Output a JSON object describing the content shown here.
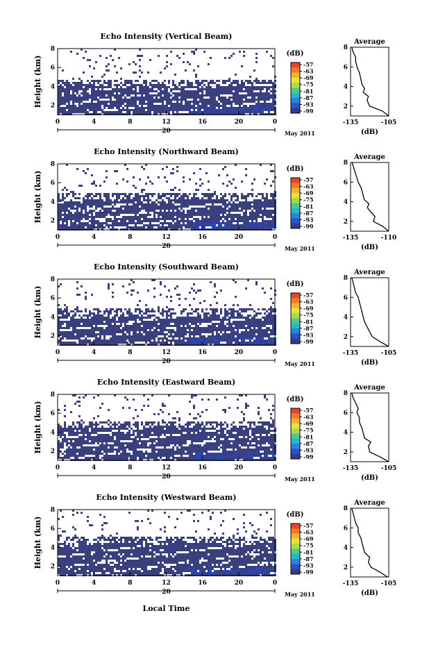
{
  "figure": {
    "month_label": "May 2011",
    "xaxis_label": "Local Time",
    "date_label": "20"
  },
  "colors": {
    "background": "#ffffff",
    "echo_fill": "#3a3f7e",
    "strong_echo": "#2446c8"
  },
  "colorbar": {
    "unit": "(dB)",
    "ticks": [
      "-57",
      "-63",
      "-69",
      "-75",
      "-81",
      "-87",
      "-93",
      "-99"
    ],
    "colors": [
      "#e8432c",
      "#f07a2a",
      "#f2b233",
      "#e8e23c",
      "#a6dc4a",
      "#52c98a",
      "#28b7cc",
      "#2a84d8",
      "#2d54c2",
      "#353a8e"
    ]
  },
  "chart_data": [
    {
      "type": "heatmap",
      "title": "Echo Intensity (Vertical Beam)",
      "ylabel": "Height (km)",
      "xlim": [
        0,
        24
      ],
      "ylim": [
        1,
        8
      ],
      "xticks": [
        "0",
        "4",
        "8",
        "12",
        "16",
        "20",
        "0"
      ],
      "yticks": [
        "2",
        "4",
        "6",
        "8"
      ],
      "echo_top_km": 4.1,
      "profile": {
        "title": "Average",
        "xlabel": "(dB)",
        "xlim": [
          -135,
          -105
        ],
        "xticks": [
          "-135",
          "-105"
        ],
        "ylim": [
          1,
          8
        ],
        "yticks": [
          "2",
          "4",
          "6",
          "8"
        ],
        "x": [
          -104,
          -110,
          -120,
          -122,
          -121,
          -125,
          -124,
          -126,
          -127,
          -128,
          -130,
          -131,
          -131,
          -133,
          -134
        ],
        "y": [
          1.0,
          1.5,
          2.0,
          2.6,
          3.0,
          3.4,
          3.8,
          4.2,
          4.8,
          5.4,
          6.0,
          6.6,
          7.0,
          7.5,
          8.0
        ]
      }
    },
    {
      "type": "heatmap",
      "title": "Echo Intensity (Northward Beam)",
      "ylabel": "Height (km)",
      "xlim": [
        0,
        24
      ],
      "ylim": [
        1,
        8
      ],
      "xticks": [
        "0",
        "4",
        "8",
        "12",
        "16",
        "20",
        "0"
      ],
      "yticks": [
        "2",
        "4",
        "6",
        "8"
      ],
      "echo_top_km": 4.3,
      "profile": {
        "title": "Average",
        "xlabel": "(dB)",
        "xlim": [
          -135,
          -110
        ],
        "xticks": [
          "-135",
          "-110"
        ],
        "ylim": [
          1,
          8
        ],
        "yticks": [
          "2",
          "4",
          "6",
          "8"
        ],
        "x": [
          -110,
          -114,
          -120,
          -119,
          -122,
          -124,
          -123,
          -126,
          -127,
          -128,
          -130,
          -131,
          -132,
          -133,
          -134
        ],
        "y": [
          1.0,
          1.5,
          2.0,
          2.5,
          3.0,
          3.4,
          3.8,
          4.2,
          4.8,
          5.4,
          6.0,
          6.5,
          7.0,
          7.5,
          8.0
        ]
      }
    },
    {
      "type": "heatmap",
      "title": "Echo Intensity (Southward Beam)",
      "ylabel": "Height (km)",
      "xlim": [
        0,
        24
      ],
      "ylim": [
        1,
        8
      ],
      "xticks": [
        "0",
        "4",
        "8",
        "12",
        "16",
        "20",
        "0"
      ],
      "yticks": [
        "2",
        "4",
        "6",
        "8"
      ],
      "echo_top_km": 4.2,
      "profile": {
        "title": "Average",
        "xlabel": "(dB)",
        "xlim": [
          -135,
          -105
        ],
        "xticks": [
          "-135",
          "-105"
        ],
        "ylim": [
          1,
          8
        ],
        "yticks": [
          "2",
          "4",
          "6",
          "8"
        ],
        "x": [
          -105,
          -112,
          -118,
          -120,
          -122,
          -124,
          -125,
          -126,
          -127,
          -128,
          -129,
          -131,
          -132,
          -133,
          -134
        ],
        "y": [
          1.0,
          1.5,
          2.0,
          2.5,
          3.0,
          3.5,
          4.0,
          4.5,
          5.0,
          5.5,
          6.0,
          6.5,
          7.0,
          7.5,
          8.0
        ]
      }
    },
    {
      "type": "heatmap",
      "title": "Echo Intensity (Eastward Beam)",
      "ylabel": "Height (km)",
      "xlim": [
        0,
        24
      ],
      "ylim": [
        1,
        8
      ],
      "xticks": [
        "0",
        "4",
        "8",
        "12",
        "16",
        "20",
        "0"
      ],
      "yticks": [
        "2",
        "4",
        "6",
        "8"
      ],
      "echo_top_km": 4.5,
      "profile": {
        "title": "Average",
        "xlabel": "(dB)",
        "xlim": [
          -135,
          -105
        ],
        "xticks": [
          "-135",
          "-105"
        ],
        "ylim": [
          1,
          8
        ],
        "yticks": [
          "2",
          "4",
          "6",
          "8"
        ],
        "x": [
          -105,
          -112,
          -120,
          -121,
          -119,
          -124,
          -125,
          -126,
          -128,
          -128,
          -130,
          -129,
          -131,
          -133,
          -134
        ],
        "y": [
          1.0,
          1.5,
          2.0,
          2.6,
          3.0,
          3.4,
          3.9,
          4.4,
          5.0,
          5.5,
          6.0,
          6.4,
          7.0,
          7.5,
          8.0
        ]
      }
    },
    {
      "type": "heatmap",
      "title": "Echo Intensity (Westward Beam)",
      "ylabel": "Height (km)",
      "xlim": [
        0,
        24
      ],
      "ylim": [
        1,
        8
      ],
      "xticks": [
        "0",
        "4",
        "8",
        "12",
        "16",
        "20",
        "0"
      ],
      "yticks": [
        "2",
        "4",
        "6",
        "8"
      ],
      "echo_top_km": 4.6,
      "profile": {
        "title": "Average",
        "xlabel": "(dB)",
        "xlim": [
          -135,
          -105
        ],
        "xticks": [
          "-135",
          "-105"
        ],
        "ylim": [
          1,
          8
        ],
        "yticks": [
          "2",
          "4",
          "6",
          "8"
        ],
        "x": [
          -106,
          -112,
          -119,
          -121,
          -120,
          -124,
          -125,
          -126,
          -127,
          -129,
          -129,
          -131,
          -132,
          -133,
          -134
        ],
        "y": [
          1.0,
          1.5,
          2.0,
          2.5,
          3.0,
          3.5,
          4.0,
          4.5,
          5.0,
          5.5,
          6.0,
          6.5,
          7.0,
          7.5,
          8.0
        ]
      }
    }
  ]
}
